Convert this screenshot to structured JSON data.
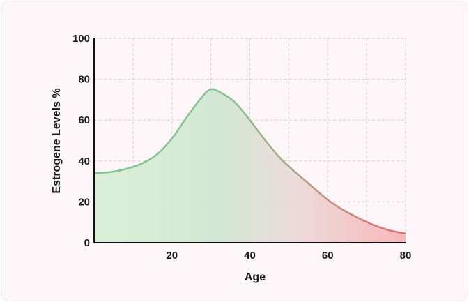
{
  "chart_data": {
    "type": "area",
    "title": "",
    "xlabel": "Age",
    "ylabel": "Estrogene Levels %",
    "xlim": [
      0,
      80
    ],
    "ylim": [
      0,
      100
    ],
    "x_ticks": [
      20,
      40,
      60,
      80
    ],
    "y_ticks": [
      0,
      20,
      40,
      60,
      80,
      100
    ],
    "grid": true,
    "x": [
      0,
      4,
      8,
      12,
      16,
      20,
      24,
      28,
      30,
      32,
      36,
      40,
      44,
      48,
      52,
      56,
      60,
      64,
      68,
      72,
      76,
      80
    ],
    "series": [
      {
        "values": [
          34,
          34.5,
          36,
          38.5,
          43,
          51,
          62,
          72,
          75,
          74,
          69,
          60,
          50,
          41,
          34,
          27.5,
          21,
          16,
          12,
          8.5,
          6,
          4.5
        ]
      }
    ],
    "colors": {
      "start": "#7cc98a",
      "end": "#e96a6a",
      "grid": "#d0d0d0",
      "axis": "#111111"
    }
  }
}
